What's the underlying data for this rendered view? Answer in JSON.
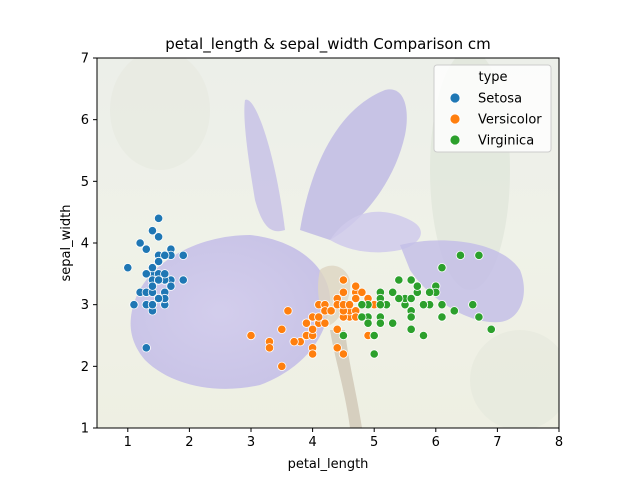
{
  "chart_data": {
    "type": "scatter",
    "title": "petal_length & sepal_width Comparison cm",
    "xlabel": "petal_length",
    "ylabel": "sepal_width",
    "xlim": [
      0.5,
      8
    ],
    "ylim": [
      1,
      7
    ],
    "xticks": [
      1,
      2,
      3,
      4,
      5,
      6,
      7,
      8
    ],
    "yticks": [
      1,
      2,
      3,
      4,
      5,
      6,
      7
    ],
    "grid": false,
    "legend": {
      "title": "type",
      "placement": "top-right"
    },
    "background_image": "iris-flower-photo",
    "series": [
      {
        "name": "Setosa",
        "color": "#1f77b4",
        "points": [
          [
            1.4,
            3.5
          ],
          [
            1.4,
            3.0
          ],
          [
            1.3,
            3.2
          ],
          [
            1.5,
            3.1
          ],
          [
            1.4,
            3.6
          ],
          [
            1.7,
            3.9
          ],
          [
            1.4,
            3.4
          ],
          [
            1.5,
            3.4
          ],
          [
            1.4,
            2.9
          ],
          [
            1.5,
            3.1
          ],
          [
            1.5,
            3.7
          ],
          [
            1.6,
            3.4
          ],
          [
            1.4,
            3.0
          ],
          [
            1.1,
            3.0
          ],
          [
            1.2,
            4.0
          ],
          [
            1.5,
            4.4
          ],
          [
            1.3,
            3.9
          ],
          [
            1.4,
            3.5
          ],
          [
            1.7,
            3.8
          ],
          [
            1.5,
            3.8
          ],
          [
            1.7,
            3.4
          ],
          [
            1.5,
            3.7
          ],
          [
            1.0,
            3.6
          ],
          [
            1.7,
            3.3
          ],
          [
            1.9,
            3.4
          ],
          [
            1.6,
            3.0
          ],
          [
            1.6,
            3.4
          ],
          [
            1.5,
            3.5
          ],
          [
            1.4,
            3.4
          ],
          [
            1.6,
            3.2
          ],
          [
            1.6,
            3.1
          ],
          [
            1.5,
            3.4
          ],
          [
            1.5,
            4.1
          ],
          [
            1.4,
            4.2
          ],
          [
            1.5,
            3.1
          ],
          [
            1.2,
            3.2
          ],
          [
            1.3,
            3.5
          ],
          [
            1.4,
            3.6
          ],
          [
            1.3,
            3.0
          ],
          [
            1.5,
            3.4
          ],
          [
            1.3,
            3.5
          ],
          [
            1.3,
            2.3
          ],
          [
            1.3,
            3.2
          ],
          [
            1.6,
            3.5
          ],
          [
            1.9,
            3.8
          ],
          [
            1.4,
            3.0
          ],
          [
            1.6,
            3.8
          ],
          [
            1.4,
            3.2
          ],
          [
            1.5,
            3.7
          ],
          [
            1.4,
            3.3
          ]
        ]
      },
      {
        "name": "Versicolor",
        "color": "#ff7f0e",
        "points": [
          [
            4.7,
            3.2
          ],
          [
            4.5,
            3.2
          ],
          [
            4.9,
            3.1
          ],
          [
            4.0,
            2.3
          ],
          [
            4.6,
            2.8
          ],
          [
            4.5,
            2.8
          ],
          [
            4.7,
            3.3
          ],
          [
            3.3,
            2.4
          ],
          [
            4.6,
            2.9
          ],
          [
            3.9,
            2.7
          ],
          [
            3.5,
            2.0
          ],
          [
            4.2,
            3.0
          ],
          [
            4.0,
            2.2
          ],
          [
            4.7,
            2.9
          ],
          [
            3.6,
            2.9
          ],
          [
            4.4,
            3.1
          ],
          [
            4.5,
            3.0
          ],
          [
            4.1,
            2.7
          ],
          [
            4.5,
            2.2
          ],
          [
            3.9,
            2.5
          ],
          [
            4.8,
            3.2
          ],
          [
            4.0,
            2.8
          ],
          [
            4.9,
            2.5
          ],
          [
            4.7,
            2.8
          ],
          [
            4.3,
            2.9
          ],
          [
            4.4,
            3.0
          ],
          [
            4.8,
            2.8
          ],
          [
            5.0,
            3.0
          ],
          [
            4.5,
            2.9
          ],
          [
            3.5,
            2.6
          ],
          [
            3.8,
            2.4
          ],
          [
            3.7,
            2.4
          ],
          [
            3.9,
            2.7
          ],
          [
            5.1,
            2.7
          ],
          [
            4.5,
            3.0
          ],
          [
            4.5,
            3.4
          ],
          [
            4.7,
            3.1
          ],
          [
            4.4,
            2.3
          ],
          [
            4.1,
            3.0
          ],
          [
            4.0,
            2.5
          ],
          [
            4.4,
            2.6
          ],
          [
            4.6,
            3.0
          ],
          [
            4.0,
            2.6
          ],
          [
            3.3,
            2.3
          ],
          [
            4.2,
            2.7
          ],
          [
            4.2,
            3.0
          ],
          [
            4.2,
            2.9
          ],
          [
            4.3,
            2.9
          ],
          [
            3.0,
            2.5
          ],
          [
            4.1,
            2.8
          ]
        ]
      },
      {
        "name": "Virginica",
        "color": "#2ca02c",
        "points": [
          [
            6.0,
            3.3
          ],
          [
            5.1,
            2.7
          ],
          [
            5.9,
            3.0
          ],
          [
            5.6,
            2.9
          ],
          [
            5.8,
            3.0
          ],
          [
            6.6,
            3.0
          ],
          [
            4.5,
            2.5
          ],
          [
            6.3,
            2.9
          ],
          [
            5.8,
            2.5
          ],
          [
            6.1,
            3.6
          ],
          [
            5.1,
            3.2
          ],
          [
            5.3,
            2.7
          ],
          [
            5.5,
            3.0
          ],
          [
            5.0,
            2.5
          ],
          [
            5.1,
            2.8
          ],
          [
            5.3,
            3.2
          ],
          [
            5.5,
            3.0
          ],
          [
            6.7,
            3.8
          ],
          [
            6.9,
            2.6
          ],
          [
            5.0,
            2.2
          ],
          [
            5.7,
            3.2
          ],
          [
            4.9,
            2.8
          ],
          [
            6.7,
            2.8
          ],
          [
            4.9,
            2.7
          ],
          [
            5.7,
            3.3
          ],
          [
            6.0,
            3.2
          ],
          [
            4.8,
            2.8
          ],
          [
            4.9,
            3.0
          ],
          [
            5.6,
            2.8
          ],
          [
            5.8,
            3.0
          ],
          [
            6.1,
            2.8
          ],
          [
            6.4,
            3.8
          ],
          [
            5.6,
            2.8
          ],
          [
            5.1,
            2.8
          ],
          [
            5.6,
            2.6
          ],
          [
            6.1,
            3.0
          ],
          [
            5.6,
            3.4
          ],
          [
            5.5,
            3.1
          ],
          [
            4.8,
            3.0
          ],
          [
            5.4,
            3.1
          ],
          [
            5.6,
            3.1
          ],
          [
            5.1,
            3.1
          ],
          [
            5.1,
            2.7
          ],
          [
            5.9,
            3.2
          ],
          [
            5.7,
            3.3
          ],
          [
            5.2,
            3.0
          ],
          [
            5.0,
            2.5
          ],
          [
            5.2,
            3.0
          ],
          [
            5.4,
            3.4
          ],
          [
            5.1,
            3.0
          ]
        ]
      }
    ]
  }
}
